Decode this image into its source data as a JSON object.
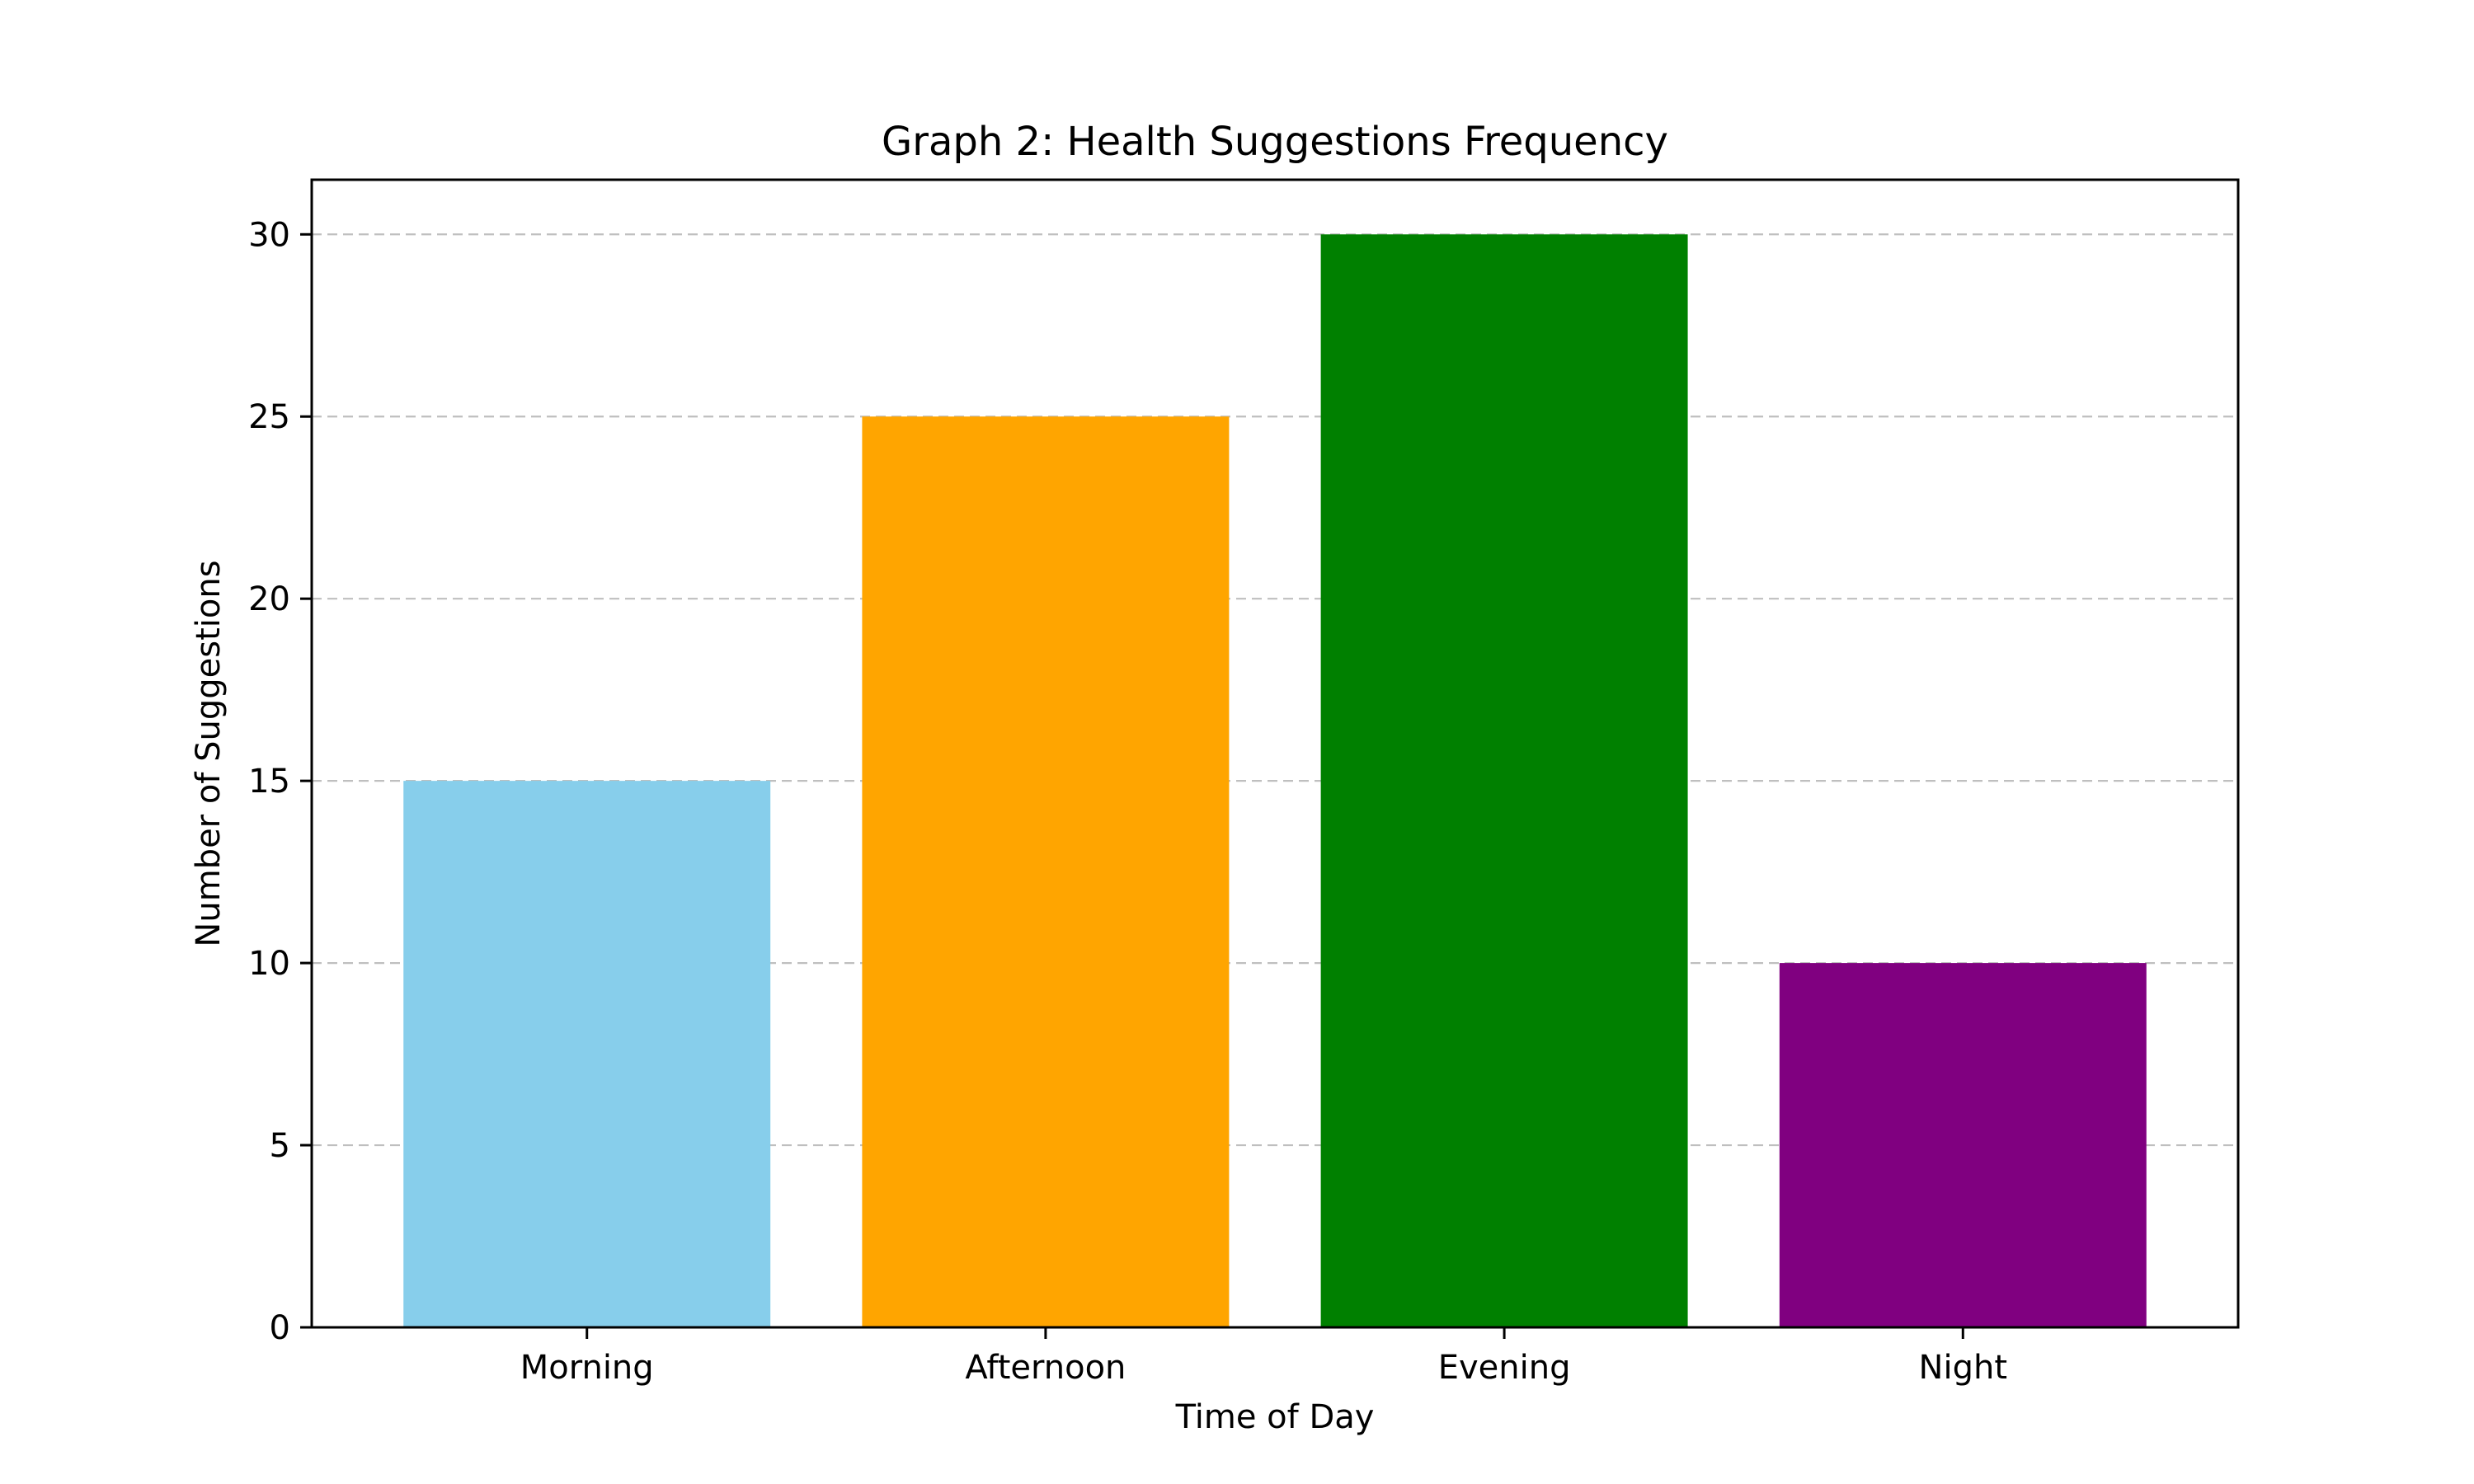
{
  "chart_data": {
    "type": "bar",
    "title": "Graph 2: Health Suggestions Frequency",
    "xlabel": "Time of Day",
    "ylabel": "Number of Suggestions",
    "categories": [
      "Morning",
      "Afternoon",
      "Evening",
      "Night"
    ],
    "values": [
      15,
      25,
      30,
      10
    ],
    "colors": [
      "#87ceeb",
      "#ffa500",
      "#008000",
      "#800080"
    ],
    "ylim": [
      0,
      31.5
    ],
    "yticks": [
      0,
      5,
      10,
      15,
      20,
      25,
      30
    ],
    "grid": "y-dashed",
    "legend": "none"
  }
}
